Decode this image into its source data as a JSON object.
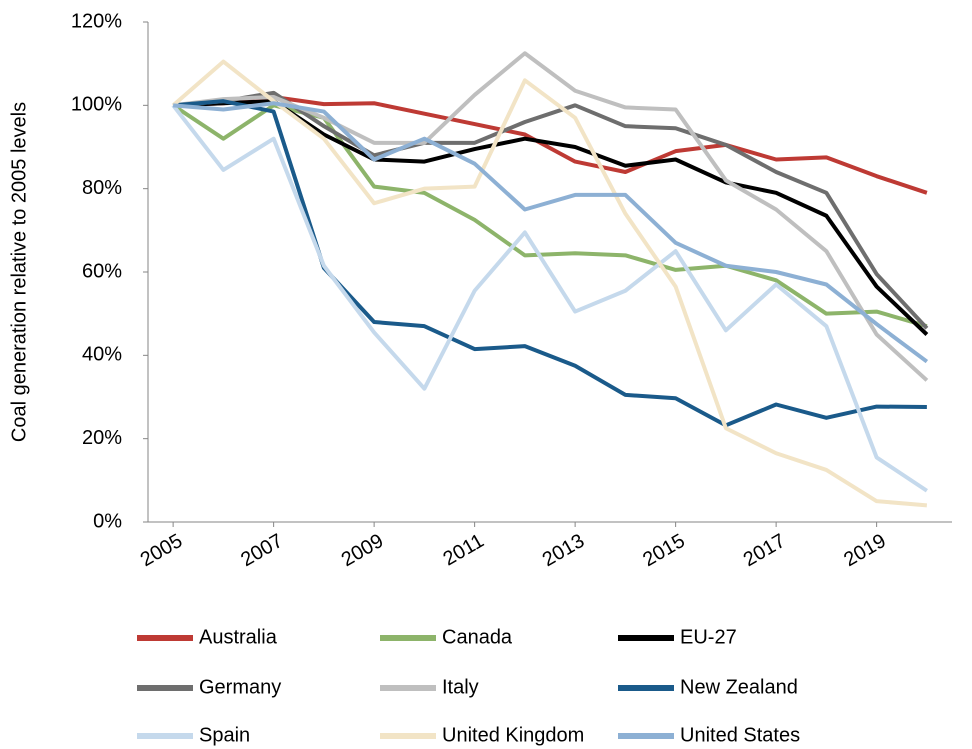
{
  "chart_data": {
    "type": "line",
    "y_label": "Coal generation relative to 2005 levels",
    "x": [
      2005,
      2006,
      2007,
      2008,
      2009,
      2010,
      2011,
      2012,
      2013,
      2014,
      2015,
      2016,
      2017,
      2018,
      2019,
      2020
    ],
    "xlim": [
      2004.5,
      2020.5
    ],
    "xticks": [
      2005,
      2007,
      2009,
      2011,
      2013,
      2015,
      2017,
      2019
    ],
    "ylim": [
      0,
      120
    ],
    "yticks": [
      {
        "value": 0,
        "label": "0%"
      },
      {
        "value": 20,
        "label": "20%"
      },
      {
        "value": 40,
        "label": "40%"
      },
      {
        "value": 60,
        "label": "60%"
      },
      {
        "value": 80,
        "label": "80%"
      },
      {
        "value": 100,
        "label": "100%"
      },
      {
        "value": 120,
        "label": "120%"
      }
    ],
    "grid": false,
    "legend": "bottom",
    "series": [
      {
        "name": "Australia",
        "color": "#be3a34",
        "values": [
          100,
          100.5,
          102,
          100.3,
          100.5,
          98,
          95.5,
          93,
          86.5,
          84,
          89,
          90.5,
          87,
          87.5,
          83,
          79
        ]
      },
      {
        "name": "Canada",
        "color": "#8db46a",
        "values": [
          100,
          92,
          100,
          97,
          80.5,
          79,
          72.5,
          64,
          64.5,
          64,
          60.5,
          61.5,
          58,
          50,
          50.5,
          47
        ]
      },
      {
        "name": "EU-27",
        "color": "#000000",
        "values": [
          100,
          100.5,
          101,
          93,
          87,
          86.5,
          89.5,
          92,
          90,
          85.5,
          87,
          81.5,
          79,
          73.5,
          56.5,
          45
        ]
      },
      {
        "name": "Germany",
        "color": "#6e6e6e",
        "values": [
          100,
          101,
          103,
          95,
          88,
          91,
          91,
          96,
          100,
          95,
          94.5,
          90.5,
          84,
          79,
          59.5,
          46.5
        ]
      },
      {
        "name": "Italy",
        "color": "#bfbfbf",
        "values": [
          100,
          101.5,
          102,
          97,
          91,
          91,
          102.5,
          112.5,
          103.5,
          99.5,
          99,
          82,
          75,
          65,
          45,
          34
        ]
      },
      {
        "name": "New Zealand",
        "color": "#1a5a8a",
        "values": [
          100,
          101,
          98.5,
          61,
          48,
          47,
          41.5,
          42.2,
          37.5,
          30.5,
          29.7,
          23.2,
          28.2,
          25,
          27.7,
          27.6
        ]
      },
      {
        "name": "Spain",
        "color": "#c5d9ec",
        "values": [
          100,
          84.5,
          92,
          61.5,
          45.5,
          32,
          55.5,
          69.5,
          50.5,
          55.5,
          65,
          46,
          57,
          47,
          15.5,
          7.5
        ]
      },
      {
        "name": "United Kingdom",
        "color": "#f2e4c6",
        "values": [
          100,
          110.5,
          101,
          92,
          76.5,
          80,
          80.5,
          106,
          97,
          74,
          56.5,
          22.5,
          16.5,
          12.5,
          5,
          4
        ]
      },
      {
        "name": "United States",
        "color": "#8db0d4",
        "values": [
          100,
          99,
          100.5,
          98.5,
          87,
          92,
          86,
          75,
          78.5,
          78.5,
          67,
          61.5,
          60,
          57,
          47.5,
          38.5
        ]
      }
    ]
  }
}
